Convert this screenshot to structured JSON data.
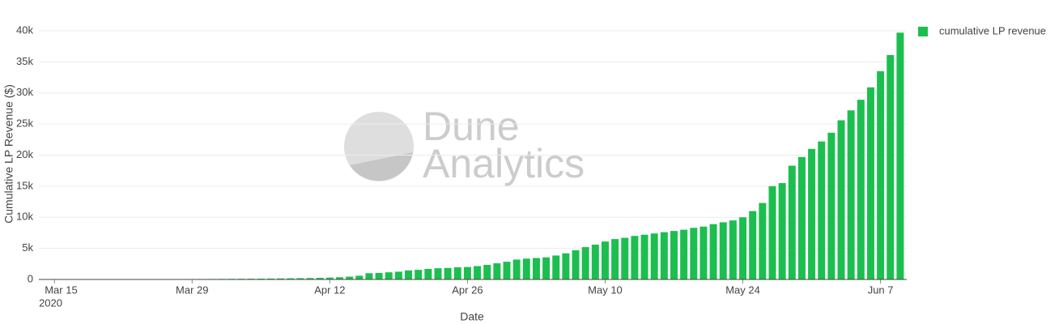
{
  "chart_data": {
    "type": "bar",
    "y_axis_label": "Cumulative LP Revenue ($)",
    "x_axis_label": "Date",
    "x_year_label": "2020",
    "watermark": {
      "line1": "Dune",
      "line2": "Analytics"
    },
    "legend_position": "top-right",
    "grid": true,
    "series": [
      {
        "name": "cumulative LP revenue",
        "color": "#1cbf4f",
        "values": [
          0,
          0,
          2,
          5,
          8,
          12,
          15,
          20,
          25,
          30,
          35,
          40,
          45,
          50,
          55,
          60,
          70,
          80,
          90,
          100,
          110,
          120,
          130,
          150,
          170,
          190,
          210,
          230,
          260,
          300,
          350,
          450,
          600,
          1000,
          1050,
          1150,
          1250,
          1450,
          1550,
          1700,
          1800,
          1850,
          1950,
          2000,
          2150,
          2350,
          2600,
          2850,
          3200,
          3350,
          3450,
          3550,
          3850,
          4200,
          4700,
          5200,
          5600,
          6100,
          6500,
          6700,
          7000,
          7200,
          7400,
          7600,
          7800,
          8000,
          8300,
          8500,
          8900,
          9200,
          9500,
          10000,
          11000,
          12300,
          15000,
          15500,
          18300,
          19700,
          21000,
          22200,
          23600,
          25600,
          27200,
          28900,
          30900,
          33500,
          36100,
          39700
        ]
      }
    ],
    "x": [
      "2020-03-14",
      "2020-03-15",
      "2020-03-16",
      "2020-03-17",
      "2020-03-18",
      "2020-03-19",
      "2020-03-20",
      "2020-03-21",
      "2020-03-22",
      "2020-03-23",
      "2020-03-24",
      "2020-03-25",
      "2020-03-26",
      "2020-03-27",
      "2020-03-28",
      "2020-03-29",
      "2020-03-30",
      "2020-03-31",
      "2020-04-01",
      "2020-04-02",
      "2020-04-03",
      "2020-04-04",
      "2020-04-05",
      "2020-04-06",
      "2020-04-07",
      "2020-04-08",
      "2020-04-09",
      "2020-04-10",
      "2020-04-11",
      "2020-04-12",
      "2020-04-13",
      "2020-04-14",
      "2020-04-15",
      "2020-04-16",
      "2020-04-17",
      "2020-04-18",
      "2020-04-19",
      "2020-04-20",
      "2020-04-21",
      "2020-04-22",
      "2020-04-23",
      "2020-04-24",
      "2020-04-25",
      "2020-04-26",
      "2020-04-27",
      "2020-04-28",
      "2020-04-29",
      "2020-04-30",
      "2020-05-01",
      "2020-05-02",
      "2020-05-03",
      "2020-05-04",
      "2020-05-05",
      "2020-05-06",
      "2020-05-07",
      "2020-05-08",
      "2020-05-09",
      "2020-05-10",
      "2020-05-11",
      "2020-05-12",
      "2020-05-13",
      "2020-05-14",
      "2020-05-15",
      "2020-05-16",
      "2020-05-17",
      "2020-05-18",
      "2020-05-19",
      "2020-05-20",
      "2020-05-21",
      "2020-05-22",
      "2020-05-23",
      "2020-05-24",
      "2020-05-25",
      "2020-05-26",
      "2020-05-27",
      "2020-05-28",
      "2020-05-29",
      "2020-05-30",
      "2020-05-31",
      "2020-06-01",
      "2020-06-02",
      "2020-06-03",
      "2020-06-04",
      "2020-06-05",
      "2020-06-06",
      "2020-06-07",
      "2020-06-08",
      "2020-06-09"
    ],
    "xlim": [
      "2020-03-13T10:00:00Z",
      "2020-06-09T16:00:00Z"
    ],
    "xticks": [
      {
        "value": "2020-03-15",
        "label": "Mar 15"
      },
      {
        "value": "2020-03-29",
        "label": "Mar 29"
      },
      {
        "value": "2020-04-12",
        "label": "Apr 12"
      },
      {
        "value": "2020-04-26",
        "label": "Apr 26"
      },
      {
        "value": "2020-05-10",
        "label": "May 10"
      },
      {
        "value": "2020-05-24",
        "label": "May 24"
      },
      {
        "value": "2020-06-07",
        "label": "Jun 7"
      }
    ],
    "ylim": [
      0,
      40000
    ],
    "yticks": [
      0,
      {
        "value": 5000,
        "label": "5k"
      },
      {
        "value": 10000,
        "label": "10k"
      },
      {
        "value": 15000,
        "label": "15k"
      },
      {
        "value": 20000,
        "label": "20k"
      },
      {
        "value": 25000,
        "label": "25k"
      },
      {
        "value": 30000,
        "label": "30k"
      },
      {
        "value": 35000,
        "label": "35k"
      },
      {
        "value": 40000,
        "label": "40k"
      }
    ]
  }
}
